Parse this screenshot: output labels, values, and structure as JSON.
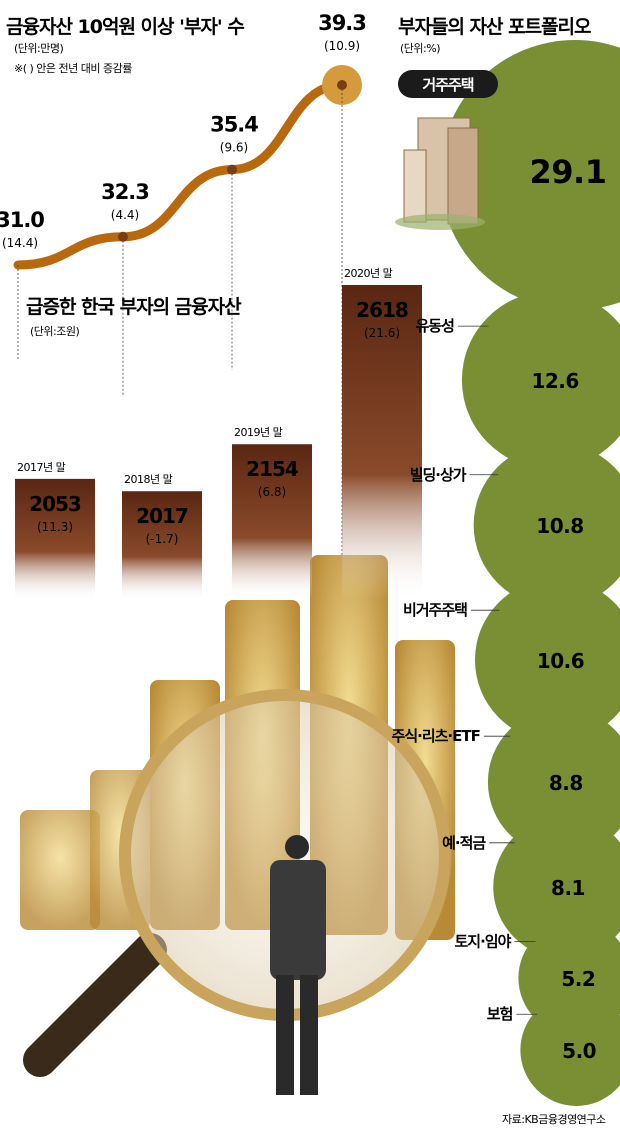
{
  "colors": {
    "bar_top": "#5a2713",
    "bar_bottom": "#b07a4e",
    "line": "#b8690e",
    "circle": "#7a8f34",
    "circle_dark": "#6b7f2c",
    "house_tag": "#1b1b1b"
  },
  "chart_data": [
    {
      "type": "line",
      "title": "금융자산 10억원 이상 '부자' 수",
      "unit": "(단위:만명)",
      "note": "※( ) 안은 전년 대비 증감률",
      "points": [
        {
          "value": "31.0",
          "change": "(14.4)",
          "v": 31.0
        },
        {
          "value": "32.3",
          "change": "(4.4)",
          "v": 32.3
        },
        {
          "value": "35.4",
          "change": "(9.6)",
          "v": 35.4
        },
        {
          "value": "39.3",
          "change": "(10.9)",
          "v": 39.3
        }
      ]
    },
    {
      "type": "bar",
      "title": "급증한 한국 부자의 금융자산",
      "unit": "(단위:조원)",
      "bars": [
        {
          "year": "2017년 말",
          "value": "2053",
          "change": "(11.3)",
          "v": 2053
        },
        {
          "year": "2018년 말",
          "value": "2017",
          "change": "(-1.7)",
          "v": 2017
        },
        {
          "year": "2019년 말",
          "value": "2154",
          "change": "(6.8)",
          "v": 2154
        },
        {
          "year": "2020년 말",
          "value": "2618",
          "change": "(21.6)",
          "v": 2618
        }
      ]
    },
    {
      "type": "bubble",
      "title": "부자들의 자산 포트폴리오",
      "unit": "(단위:%)",
      "items": [
        {
          "label": "거주주택",
          "value": "29.1",
          "v": 29.1
        },
        {
          "label": "유동성",
          "value": "12.6",
          "v": 12.6
        },
        {
          "label": "빌딩·상가",
          "value": "10.8",
          "v": 10.8
        },
        {
          "label": "비거주주택",
          "value": "10.6",
          "v": 10.6
        },
        {
          "label": "주식·리츠·ETF",
          "value": "8.8",
          "v": 8.8
        },
        {
          "label": "예·적금",
          "value": "8.1",
          "v": 8.1
        },
        {
          "label": "토지·임야",
          "value": "5.2",
          "v": 5.2
        },
        {
          "label": "보험",
          "value": "5.0",
          "v": 5.0
        }
      ]
    }
  ],
  "source": "자료:KB금융경영연구소"
}
